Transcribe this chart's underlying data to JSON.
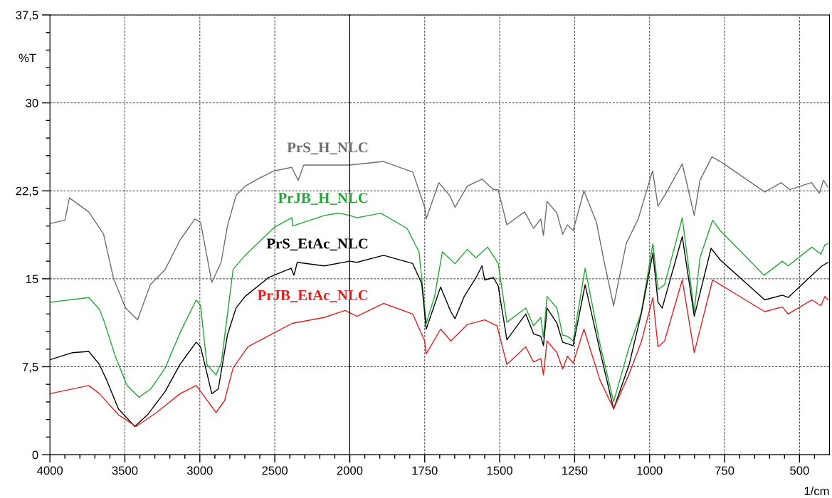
{
  "chart_data": [
    {
      "type": "line",
      "ylabel": "%T",
      "tick_labels": true,
      "xlim": [
        4000,
        2000
      ],
      "xticks": [
        4000,
        3500,
        3000,
        2500,
        2000
      ],
      "ylim": [
        0,
        37.5
      ],
      "yticks": [
        0,
        {
          "value": 7.5,
          "label": "7,5"
        },
        15,
        {
          "value": 22.5,
          "label": "22,5"
        },
        30,
        {
          "value": 37.5,
          "label": "37,5"
        }
      ],
      "grid": true,
      "marker": "none",
      "line_style": "solid",
      "series": [
        {
          "name": "PrS_H_NLC",
          "color": "#6d6d6d",
          "x": [
            4000,
            3900,
            3870,
            3741,
            3642,
            3623,
            3575,
            3495,
            3415,
            3330,
            3231,
            3132,
            3033,
            2995,
            2920,
            2858,
            2816,
            2759,
            2698,
            2600,
            2505,
            2387,
            2344,
            2307,
            2000
          ],
          "values": [
            19.7,
            20.0,
            21.9,
            20.7,
            18.8,
            17.7,
            15.0,
            12.5,
            11.5,
            14.5,
            15.8,
            18.3,
            20.1,
            19.8,
            14.7,
            16.4,
            19.5,
            22.1,
            22.9,
            23.6,
            24.2,
            24.5,
            23.4,
            24.7,
            24.7
          ]
        },
        {
          "name": "PrJB_H_NLC",
          "color": "#22a637",
          "x": [
            4000,
            3741,
            3670,
            3642,
            3564,
            3486,
            3406,
            3328,
            3231,
            3132,
            3024,
            2995,
            2953,
            2892,
            2856,
            2778,
            2698,
            2502,
            2387,
            2380,
            2170,
            2071,
            2000
          ],
          "values": [
            13.0,
            13.4,
            12.4,
            11.5,
            8.4,
            5.9,
            4.9,
            5.6,
            7.4,
            10.4,
            13.2,
            12.7,
            7.7,
            6.8,
            7.9,
            15.8,
            17.0,
            19.4,
            20.2,
            19.5,
            20.4,
            20.6,
            20.4
          ]
        },
        {
          "name": "PrS_EtAc_NLC",
          "color": "#000000",
          "x": [
            4000,
            3849,
            3741,
            3670,
            3623,
            3543,
            3434,
            3349,
            3231,
            3132,
            3024,
            2995,
            2920,
            2877,
            2816,
            2759,
            2698,
            2542,
            2392,
            2372,
            2350,
            2170,
            2000
          ],
          "values": [
            8.1,
            8.7,
            8.8,
            7.7,
            6.4,
            3.9,
            2.4,
            3.4,
            5.4,
            7.7,
            9.6,
            9.2,
            5.2,
            5.6,
            10.2,
            12.5,
            13.5,
            15.1,
            15.9,
            15.3,
            16.4,
            16.1,
            16.5
          ]
        },
        {
          "name": "PrJB_EtAc_NLC",
          "color": "#e02020",
          "x": [
            4000,
            3741,
            3670,
            3543,
            3425,
            3288,
            3132,
            3024,
            2995,
            2892,
            2835,
            2778,
            2679,
            2502,
            2384,
            2170,
            2031,
            2000
          ],
          "values": [
            5.2,
            5.9,
            5.2,
            3.4,
            2.4,
            3.6,
            5.2,
            5.9,
            5.4,
            3.6,
            4.6,
            7.4,
            9.2,
            10.4,
            11.2,
            11.7,
            12.3,
            12.1
          ]
        }
      ]
    },
    {
      "type": "line",
      "xlabel": "1/cm",
      "tick_labels": "x",
      "xlim": [
        2000,
        400
      ],
      "xticks": [
        {
          "value": 2000,
          "label": null
        },
        1750,
        1500,
        1250,
        1000,
        750,
        500
      ],
      "ylim": [
        0,
        37.5
      ],
      "yticks": [
        0,
        7.5,
        15,
        22.5,
        30,
        37.5
      ],
      "grid": true,
      "marker": "none",
      "line_style": "solid",
      "series": [
        {
          "color": "#6d6d6d",
          "x": [
            2000,
            1887,
            1790,
            1750,
            1745,
            1703,
            1667,
            1649,
            1608,
            1559,
            1521,
            1505,
            1476,
            1417,
            1387,
            1363,
            1354,
            1342,
            1309,
            1290,
            1274,
            1255,
            1219,
            1177,
            1152,
            1120,
            1078,
            1038,
            1009,
            990,
            972,
            950,
            891,
            851,
            832,
            792,
            764,
            684,
            616,
            561,
            533,
            460,
            434,
            420,
            405
          ],
          "values": [
            24.7,
            25.0,
            24.1,
            21.1,
            20.1,
            23.2,
            22.1,
            21.1,
            22.9,
            23.5,
            22.6,
            22.6,
            19.6,
            20.7,
            19.3,
            20.1,
            18.7,
            21.6,
            20.6,
            18.8,
            19.6,
            19.1,
            22.5,
            19.8,
            16.5,
            12.7,
            18.0,
            20.1,
            22.6,
            24.2,
            21.2,
            22.1,
            24.8,
            20.4,
            23.4,
            25.4,
            25.0,
            23.6,
            22.4,
            23.2,
            22.6,
            23.2,
            22.3,
            23.4,
            22.8
          ]
        },
        {
          "color": "#22a637",
          "x": [
            2000,
            1976,
            1897,
            1809,
            1769,
            1745,
            1717,
            1691,
            1649,
            1608,
            1579,
            1540,
            1505,
            1476,
            1413,
            1387,
            1363,
            1354,
            1342,
            1309,
            1290,
            1274,
            1255,
            1215,
            1166,
            1120,
            1068,
            1028,
            989,
            972,
            950,
            891,
            851,
            832,
            790,
            764,
            618,
            557,
            538,
            459,
            429,
            415,
            405
          ],
          "values": [
            20.4,
            20.2,
            20.6,
            19.3,
            17.3,
            11.2,
            13.5,
            17.3,
            16.3,
            17.5,
            16.8,
            17.7,
            16.3,
            11.3,
            12.5,
            11.0,
            11.7,
            10.0,
            13.5,
            12.5,
            10.2,
            10.1,
            9.7,
            15.9,
            9.5,
            4.5,
            9.2,
            12.1,
            18.0,
            14.1,
            14.5,
            20.2,
            12.2,
            16.8,
            20.0,
            19.1,
            15.3,
            16.5,
            16.1,
            17.7,
            17.1,
            17.9,
            18.0
          ]
        },
        {
          "color": "#000000",
          "x": [
            2000,
            1976,
            1887,
            1790,
            1760,
            1745,
            1697,
            1663,
            1649,
            1618,
            1579,
            1559,
            1550,
            1521,
            1505,
            1476,
            1413,
            1387,
            1363,
            1354,
            1342,
            1309,
            1290,
            1255,
            1215,
            1166,
            1120,
            1068,
            1028,
            989,
            972,
            958,
            891,
            851,
            795,
            764,
            616,
            557,
            538,
            459,
            425,
            405
          ],
          "values": [
            16.5,
            16.4,
            17.0,
            16.3,
            14.6,
            10.7,
            14.3,
            12.2,
            11.6,
            13.5,
            15.1,
            16.1,
            14.9,
            15.1,
            14.4,
            9.8,
            12.0,
            10.3,
            10.1,
            9.3,
            12.5,
            11.2,
            9.6,
            9.3,
            14.5,
            8.9,
            3.9,
            7.7,
            12.0,
            17.2,
            13.0,
            12.5,
            18.6,
            11.8,
            17.6,
            16.6,
            13.2,
            13.6,
            13.4,
            15.3,
            16.1,
            16.4
          ]
        },
        {
          "color": "#e02020",
          "x": [
            2000,
            1976,
            1887,
            1790,
            1750,
            1745,
            1697,
            1663,
            1608,
            1550,
            1509,
            1476,
            1413,
            1387,
            1363,
            1354,
            1342,
            1309,
            1290,
            1274,
            1255,
            1219,
            1166,
            1120,
            1068,
            1028,
            989,
            972,
            950,
            891,
            851,
            790,
            764,
            616,
            557,
            538,
            459,
            429,
            415,
            405
          ],
          "values": [
            12.1,
            11.8,
            12.9,
            12.0,
            9.7,
            8.6,
            10.7,
            9.7,
            11.1,
            11.5,
            11.0,
            7.7,
            9.2,
            7.9,
            8.2,
            6.8,
            9.7,
            8.7,
            7.3,
            8.4,
            7.8,
            10.7,
            6.4,
            3.9,
            6.9,
            9.6,
            13.4,
            9.2,
            9.7,
            14.9,
            8.7,
            14.9,
            14.5,
            12.2,
            12.6,
            12.0,
            13.2,
            12.7,
            13.5,
            13.2
          ]
        }
      ]
    }
  ]
}
